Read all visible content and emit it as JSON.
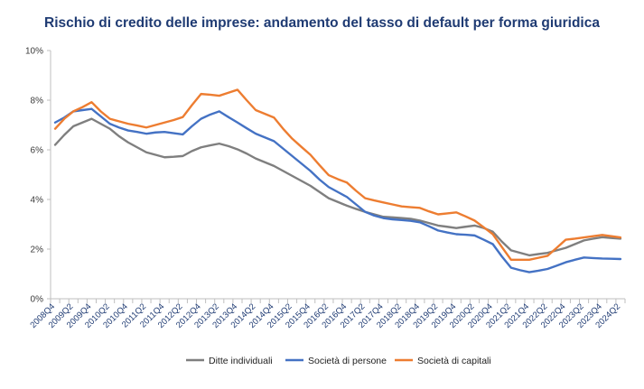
{
  "chart_data": {
    "type": "line",
    "title": "Rischio di credito delle imprese: andamento del tasso di default per forma giuridica",
    "xlabel": "",
    "ylabel": "",
    "ylim": [
      0,
      10
    ],
    "yticks": [
      "0%",
      "2%",
      "4%",
      "6%",
      "8%",
      "10%"
    ],
    "grid": false,
    "legend_position": "bottom",
    "x": [
      "2008Q4",
      "2009Q1",
      "2009Q2",
      "2009Q3",
      "2009Q4",
      "2010Q1",
      "2010Q2",
      "2010Q3",
      "2010Q4",
      "2011Q1",
      "2011Q2",
      "2011Q3",
      "2011Q4",
      "2012Q1",
      "2012Q2",
      "2012Q3",
      "2012Q4",
      "2013Q1",
      "2013Q2",
      "2013Q3",
      "2013Q4",
      "2014Q1",
      "2014Q2",
      "2014Q3",
      "2014Q4",
      "2015Q1",
      "2015Q2",
      "2015Q3",
      "2015Q4",
      "2016Q1",
      "2016Q2",
      "2016Q3",
      "2016Q4",
      "2017Q1",
      "2017Q2",
      "2017Q3",
      "2017Q4",
      "2018Q1",
      "2018Q2",
      "2018Q3",
      "2018Q4",
      "2019Q1",
      "2019Q2",
      "2019Q3",
      "2019Q4",
      "2020Q1",
      "2020Q2",
      "2020Q3",
      "2020Q4",
      "2021Q1",
      "2021Q2",
      "2021Q3",
      "2021Q4",
      "2022Q1",
      "2022Q2",
      "2022Q3",
      "2022Q4",
      "2023Q1",
      "2023Q2",
      "2023Q3",
      "2023Q4",
      "2024Q1",
      "2024Q2"
    ],
    "x_tick_labels": [
      "2008Q4",
      "2009Q2",
      "2009Q4",
      "2010Q2",
      "2010Q4",
      "2011Q2",
      "2011Q4",
      "2012Q2",
      "2012Q4",
      "2013Q2",
      "2013Q4",
      "2014Q2",
      "2014Q4",
      "2015Q2",
      "2015Q4",
      "2016Q2",
      "2016Q4",
      "2017Q2",
      "2017Q4",
      "2018Q2",
      "2018Q4",
      "2019Q2",
      "2019Q4",
      "2020Q2",
      "2020Q4",
      "2021Q2",
      "2021Q4",
      "2022Q2",
      "2022Q4",
      "2023Q2",
      "2023Q4",
      "2024Q2"
    ],
    "series": [
      {
        "name": "Ditte individuali",
        "color": "#7f7f7f",
        "values": [
          6.2,
          6.6,
          6.95,
          7.1,
          7.25,
          7.05,
          6.85,
          6.55,
          6.3,
          6.1,
          5.9,
          5.8,
          5.7,
          5.72,
          5.75,
          5.95,
          6.1,
          6.18,
          6.25,
          6.15,
          6.02,
          5.85,
          5.65,
          5.5,
          5.35,
          5.15,
          4.95,
          4.75,
          4.55,
          4.3,
          4.05,
          3.9,
          3.75,
          3.62,
          3.5,
          3.4,
          3.3,
          3.28,
          3.25,
          3.22,
          3.15,
          3.05,
          2.95,
          2.9,
          2.85,
          2.9,
          2.95,
          2.85,
          2.7,
          2.3,
          1.95,
          1.85,
          1.75,
          1.8,
          1.85,
          1.95,
          2.05,
          2.2,
          2.35,
          2.42,
          2.48,
          2.45,
          2.42
        ]
      },
      {
        "name": "Società di persone",
        "color": "#4472c4",
        "values": [
          7.1,
          7.3,
          7.55,
          7.6,
          7.65,
          7.35,
          7.05,
          6.9,
          6.78,
          6.72,
          6.65,
          6.7,
          6.72,
          6.67,
          6.62,
          6.95,
          7.25,
          7.42,
          7.55,
          7.32,
          7.1,
          6.87,
          6.65,
          6.5,
          6.35,
          6.05,
          5.75,
          5.45,
          5.15,
          4.8,
          4.5,
          4.3,
          4.1,
          3.8,
          3.5,
          3.35,
          3.25,
          3.2,
          3.17,
          3.14,
          3.08,
          2.92,
          2.75,
          2.67,
          2.6,
          2.58,
          2.55,
          2.38,
          2.2,
          1.7,
          1.25,
          1.15,
          1.07,
          1.13,
          1.2,
          1.33,
          1.47,
          1.57,
          1.66,
          1.64,
          1.62,
          1.61,
          1.6
        ]
      },
      {
        "name": "Società di capitali",
        "color": "#ed7d31",
        "values": [
          6.85,
          7.25,
          7.55,
          7.72,
          7.92,
          7.55,
          7.25,
          7.15,
          7.05,
          6.98,
          6.9,
          7.0,
          7.1,
          7.2,
          7.32,
          7.8,
          8.25,
          8.22,
          8.18,
          8.3,
          8.42,
          8.0,
          7.6,
          7.45,
          7.3,
          6.85,
          6.45,
          6.12,
          5.8,
          5.38,
          4.98,
          4.82,
          4.68,
          4.35,
          4.05,
          3.96,
          3.88,
          3.8,
          3.72,
          3.69,
          3.66,
          3.52,
          3.4,
          3.44,
          3.48,
          3.32,
          3.15,
          2.88,
          2.6,
          2.08,
          1.57,
          1.57,
          1.57,
          1.65,
          1.73,
          2.05,
          2.38,
          2.42,
          2.47,
          2.52,
          2.57,
          2.52,
          2.47
        ]
      }
    ]
  }
}
